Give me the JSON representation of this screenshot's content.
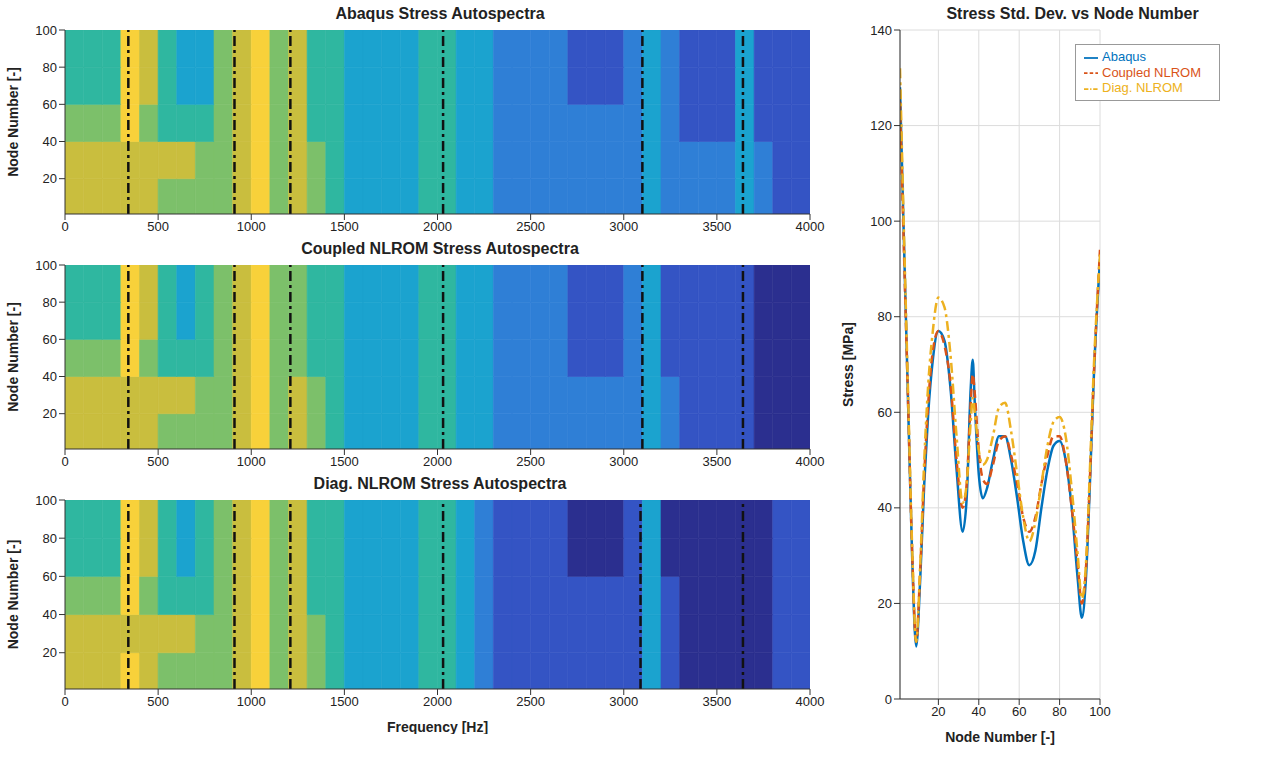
{
  "chart_data": [
    {
      "type": "heatmap",
      "title": "Abaqus Stress Autospectra",
      "y_label": "Node Number [-]",
      "xlim": [
        0,
        4000
      ],
      "xticks": [
        0,
        500,
        1000,
        1500,
        2000,
        2500,
        3000,
        3500,
        4000
      ],
      "ylim": [
        1,
        100
      ],
      "yticks": [
        20,
        40,
        60,
        80,
        100
      ],
      "x_bins": [
        0,
        100,
        200,
        300,
        400,
        500,
        600,
        700,
        800,
        900,
        1000,
        1100,
        1200,
        1300,
        1400,
        1500,
        1600,
        1700,
        1800,
        1900,
        2000,
        2100,
        2200,
        2300,
        2400,
        2500,
        2600,
        2700,
        2800,
        2900,
        3000,
        3100,
        3200,
        3300,
        3400,
        3500,
        3600,
        3700,
        3800,
        3900,
        4000
      ],
      "y_bins": [
        1,
        20,
        40,
        60,
        80,
        100
      ],
      "colors": [
        "#2b2f8f",
        "#3454c4",
        "#2f7fd6",
        "#1ba3cf",
        "#2fb7a0",
        "#7cc06a",
        "#c9be3e",
        "#f8d13a"
      ],
      "cells": [
        [
          6,
          6,
          6,
          6,
          6,
          5,
          5,
          5,
          5,
          6,
          7,
          5,
          6,
          5,
          4,
          3,
          3,
          3,
          3,
          4,
          4,
          3,
          3,
          2,
          2,
          2,
          2,
          2,
          2,
          2,
          2,
          3,
          2,
          2,
          2,
          2,
          3,
          2,
          1,
          1
        ],
        [
          6,
          6,
          6,
          6,
          6,
          6,
          6,
          5,
          5,
          6,
          7,
          5,
          6,
          5,
          4,
          3,
          3,
          3,
          3,
          4,
          4,
          3,
          3,
          2,
          2,
          2,
          2,
          2,
          2,
          2,
          2,
          3,
          2,
          2,
          2,
          2,
          3,
          2,
          1,
          1
        ],
        [
          5,
          5,
          5,
          7,
          5,
          4,
          4,
          4,
          5,
          6,
          7,
          5,
          6,
          4,
          4,
          3,
          3,
          3,
          3,
          4,
          4,
          3,
          3,
          2,
          2,
          2,
          2,
          2,
          2,
          2,
          2,
          3,
          2,
          1,
          1,
          1,
          3,
          1,
          1,
          1
        ],
        [
          4,
          4,
          4,
          7,
          6,
          4,
          3,
          3,
          5,
          6,
          7,
          5,
          6,
          4,
          4,
          3,
          3,
          3,
          3,
          4,
          4,
          3,
          3,
          2,
          2,
          2,
          2,
          1,
          1,
          1,
          2,
          3,
          2,
          1,
          1,
          1,
          3,
          1,
          1,
          1
        ],
        [
          4,
          4,
          4,
          7,
          6,
          4,
          3,
          3,
          5,
          6,
          7,
          5,
          6,
          4,
          4,
          3,
          3,
          3,
          3,
          4,
          4,
          3,
          3,
          2,
          2,
          2,
          2,
          1,
          1,
          1,
          2,
          3,
          2,
          1,
          1,
          1,
          3,
          1,
          1,
          1
        ]
      ],
      "reference_lines": [
        340,
        910,
        1210,
        2030,
        3100,
        3640
      ],
      "line_style": "dashdot"
    },
    {
      "type": "heatmap",
      "title": "Coupled NLROM Stress Autospectra",
      "y_label": "Node Number [-]",
      "xlim": [
        0,
        4000
      ],
      "xticks": [
        0,
        500,
        1000,
        1500,
        2000,
        2500,
        3000,
        3500,
        4000
      ],
      "ylim": [
        1,
        100
      ],
      "yticks": [
        20,
        40,
        60,
        80,
        100
      ],
      "x_bins": [
        0,
        100,
        200,
        300,
        400,
        500,
        600,
        700,
        800,
        900,
        1000,
        1100,
        1200,
        1300,
        1400,
        1500,
        1600,
        1700,
        1800,
        1900,
        2000,
        2100,
        2200,
        2300,
        2400,
        2500,
        2600,
        2700,
        2800,
        2900,
        3000,
        3100,
        3200,
        3300,
        3400,
        3500,
        3600,
        3700,
        3800,
        3900,
        4000
      ],
      "y_bins": [
        1,
        20,
        40,
        60,
        80,
        100
      ],
      "colors": [
        "#2b2f8f",
        "#3454c4",
        "#2f7fd6",
        "#1ba3cf",
        "#2fb7a0",
        "#7cc06a",
        "#c9be3e",
        "#f8d13a"
      ],
      "cells": [
        [
          6,
          6,
          6,
          6,
          6,
          5,
          5,
          5,
          5,
          6,
          7,
          5,
          6,
          5,
          4,
          3,
          3,
          3,
          3,
          4,
          4,
          3,
          3,
          2,
          2,
          2,
          2,
          2,
          2,
          2,
          2,
          3,
          2,
          1,
          1,
          1,
          1,
          0,
          0,
          0
        ],
        [
          6,
          6,
          6,
          6,
          6,
          6,
          6,
          5,
          5,
          6,
          7,
          5,
          6,
          5,
          4,
          3,
          3,
          3,
          3,
          4,
          4,
          3,
          3,
          2,
          2,
          2,
          2,
          2,
          2,
          2,
          2,
          3,
          2,
          1,
          1,
          1,
          1,
          0,
          0,
          0
        ],
        [
          5,
          5,
          5,
          7,
          5,
          4,
          4,
          4,
          5,
          6,
          7,
          5,
          5,
          4,
          4,
          3,
          3,
          3,
          3,
          4,
          4,
          3,
          3,
          2,
          2,
          2,
          2,
          1,
          1,
          1,
          2,
          3,
          1,
          1,
          1,
          1,
          1,
          0,
          0,
          0
        ],
        [
          4,
          4,
          4,
          7,
          6,
          4,
          3,
          4,
          5,
          6,
          7,
          5,
          5,
          4,
          4,
          3,
          3,
          3,
          3,
          4,
          4,
          3,
          3,
          2,
          2,
          2,
          2,
          1,
          1,
          1,
          2,
          3,
          1,
          1,
          1,
          1,
          1,
          0,
          0,
          0
        ],
        [
          4,
          4,
          4,
          7,
          6,
          4,
          3,
          4,
          5,
          6,
          7,
          5,
          5,
          4,
          4,
          3,
          3,
          3,
          3,
          4,
          4,
          3,
          3,
          2,
          2,
          2,
          2,
          1,
          1,
          1,
          2,
          3,
          1,
          1,
          1,
          1,
          1,
          0,
          0,
          0
        ]
      ],
      "reference_lines": [
        340,
        910,
        1210,
        2030,
        3100,
        3640
      ],
      "line_style": "dashdot"
    },
    {
      "type": "heatmap",
      "title": "Diag. NLROM Stress Autospectra",
      "x_label": "Frequency [Hz]",
      "y_label": "Node Number [-]",
      "xlim": [
        0,
        4000
      ],
      "xticks": [
        0,
        500,
        1000,
        1500,
        2000,
        2500,
        3000,
        3500,
        4000
      ],
      "ylim": [
        1,
        100
      ],
      "yticks": [
        20,
        40,
        60,
        80,
        100
      ],
      "x_bins": [
        0,
        100,
        200,
        300,
        400,
        500,
        600,
        700,
        800,
        900,
        1000,
        1100,
        1200,
        1300,
        1400,
        1500,
        1600,
        1700,
        1800,
        1900,
        2000,
        2100,
        2200,
        2300,
        2400,
        2500,
        2600,
        2700,
        2800,
        2900,
        3000,
        3100,
        3200,
        3300,
        3400,
        3500,
        3600,
        3700,
        3800,
        3900,
        4000
      ],
      "y_bins": [
        1,
        20,
        40,
        60,
        80,
        100
      ],
      "colors": [
        "#2b2f8f",
        "#3454c4",
        "#2f7fd6",
        "#1ba3cf",
        "#2fb7a0",
        "#7cc06a",
        "#c9be3e",
        "#f8d13a"
      ],
      "cells": [
        [
          6,
          6,
          6,
          7,
          6,
          5,
          5,
          5,
          5,
          6,
          7,
          5,
          6,
          5,
          4,
          3,
          3,
          3,
          3,
          4,
          4,
          3,
          2,
          1,
          1,
          1,
          1,
          1,
          1,
          1,
          1,
          3,
          1,
          0,
          0,
          0,
          0,
          0,
          1,
          1
        ],
        [
          6,
          6,
          6,
          6,
          6,
          6,
          6,
          5,
          5,
          6,
          7,
          5,
          6,
          5,
          4,
          3,
          3,
          3,
          3,
          4,
          4,
          3,
          2,
          1,
          1,
          1,
          1,
          1,
          1,
          1,
          1,
          3,
          1,
          0,
          0,
          0,
          0,
          0,
          1,
          1
        ],
        [
          5,
          5,
          5,
          7,
          5,
          4,
          4,
          4,
          5,
          6,
          7,
          5,
          6,
          4,
          4,
          3,
          3,
          3,
          3,
          4,
          4,
          3,
          2,
          1,
          1,
          1,
          1,
          1,
          1,
          1,
          1,
          3,
          1,
          0,
          0,
          0,
          0,
          0,
          1,
          1
        ],
        [
          4,
          4,
          4,
          7,
          6,
          4,
          3,
          4,
          5,
          6,
          7,
          5,
          6,
          4,
          4,
          3,
          3,
          3,
          3,
          4,
          4,
          3,
          2,
          1,
          1,
          1,
          1,
          0,
          0,
          0,
          1,
          3,
          0,
          0,
          0,
          0,
          0,
          0,
          1,
          1
        ],
        [
          4,
          4,
          4,
          7,
          6,
          4,
          3,
          4,
          5,
          6,
          7,
          5,
          6,
          4,
          4,
          3,
          3,
          3,
          3,
          4,
          4,
          3,
          2,
          1,
          1,
          1,
          1,
          0,
          0,
          0,
          1,
          3,
          0,
          0,
          0,
          0,
          0,
          0,
          1,
          1
        ]
      ],
      "reference_lines": [
        340,
        910,
        1210,
        2030,
        3090,
        3640
      ],
      "line_style": "dashdot"
    },
    {
      "type": "line",
      "title": "Stress Std. Dev. vs Node Number",
      "x_label": "Node Number [-]",
      "y_label": "Stress [MPa]",
      "xlim": [
        1,
        100
      ],
      "xticks": [
        20,
        40,
        60,
        80,
        100
      ],
      "ylim": [
        0,
        140
      ],
      "yticks": [
        0,
        20,
        40,
        60,
        80,
        100,
        120,
        140
      ],
      "grid": true,
      "legend": "upper right",
      "x": [
        1,
        3,
        5,
        7,
        9,
        11,
        13,
        15,
        17,
        20,
        23,
        26,
        29,
        32,
        34,
        36,
        37,
        38,
        40,
        42,
        44,
        47,
        50,
        53,
        56,
        59,
        62,
        65,
        68,
        71,
        74,
        77,
        80,
        83,
        86,
        89,
        91,
        93,
        95,
        97,
        100
      ],
      "series": [
        {
          "name": "Abaqus",
          "color": "#0072bd",
          "line_style": "solid",
          "values": [
            128,
            95,
            62,
            30,
            11,
            25,
            45,
            60,
            70,
            77,
            75,
            65,
            48,
            35,
            42,
            65,
            71,
            62,
            47,
            42,
            44,
            50,
            55,
            55,
            50,
            42,
            33,
            28,
            31,
            40,
            48,
            53,
            54,
            50,
            40,
            25,
            17,
            25,
            45,
            68,
            92
          ]
        },
        {
          "name": "Coupled NLROM",
          "color": "#d95319",
          "line_style": "dashed",
          "values": [
            125,
            93,
            62,
            31,
            12,
            27,
            47,
            62,
            72,
            77,
            74,
            66,
            50,
            40,
            45,
            62,
            68,
            64,
            52,
            46,
            45,
            49,
            54,
            55,
            51,
            45,
            38,
            35,
            38,
            45,
            51,
            55,
            55,
            50,
            40,
            28,
            20,
            27,
            46,
            68,
            94
          ]
        },
        {
          "name": "Diag. NLROM",
          "color": "#edb120",
          "line_style": "dashdot",
          "values": [
            132,
            97,
            64,
            32,
            12,
            28,
            50,
            66,
            76,
            84,
            82,
            72,
            55,
            41,
            45,
            58,
            63,
            60,
            52,
            49,
            50,
            55,
            61,
            62,
            56,
            47,
            38,
            33,
            37,
            45,
            53,
            58,
            59,
            55,
            44,
            30,
            21,
            28,
            48,
            70,
            93
          ]
        }
      ]
    }
  ]
}
